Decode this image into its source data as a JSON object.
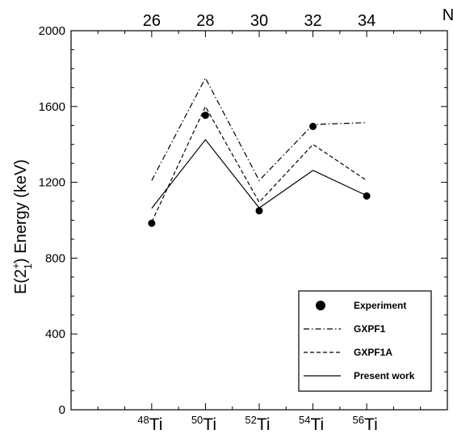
{
  "chart_data": {
    "type": "line",
    "ylabel": {
      "prefix": "E(2",
      "sup": "+",
      "sub": "1",
      "suffix": ") Energy  (keV)"
    },
    "top_axis_label": "N",
    "ylim": [
      0,
      2000
    ],
    "xlim": [
      23,
      37
    ],
    "yticks": [
      0,
      400,
      800,
      1200,
      1600,
      2000
    ],
    "neutron_ticks": [
      26,
      28,
      30,
      32,
      34
    ],
    "isotopes": [
      {
        "mass": "48",
        "element": "Ti",
        "n": 26
      },
      {
        "mass": "50",
        "element": "Ti",
        "n": 28
      },
      {
        "mass": "52",
        "element": "Ti",
        "n": 30
      },
      {
        "mass": "54",
        "element": "Ti",
        "n": 32
      },
      {
        "mass": "56",
        "element": "Ti",
        "n": 34
      }
    ],
    "series": [
      {
        "name": "Experiment",
        "style": "marker",
        "x": [
          26,
          28,
          30,
          32,
          34
        ],
        "y": [
          984,
          1554,
          1050,
          1495,
          1128
        ]
      },
      {
        "name": "GXPF1",
        "style": "dashdot",
        "x": [
          26,
          28,
          30,
          32,
          34
        ],
        "y": [
          1210,
          1750,
          1210,
          1505,
          1515
        ]
      },
      {
        "name": "GXPF1A",
        "style": "dashed",
        "x": [
          26,
          28,
          30,
          32,
          34
        ],
        "y": [
          990,
          1600,
          1095,
          1400,
          1210
        ]
      },
      {
        "name": "Present work",
        "style": "solid",
        "x": [
          26,
          28,
          30,
          32,
          34
        ],
        "y": [
          1063,
          1425,
          1065,
          1263,
          1130
        ]
      }
    ],
    "grid": false,
    "legend": "bottom-right",
    "colors": {
      "line": "#000000",
      "background": "#ffffff"
    }
  }
}
